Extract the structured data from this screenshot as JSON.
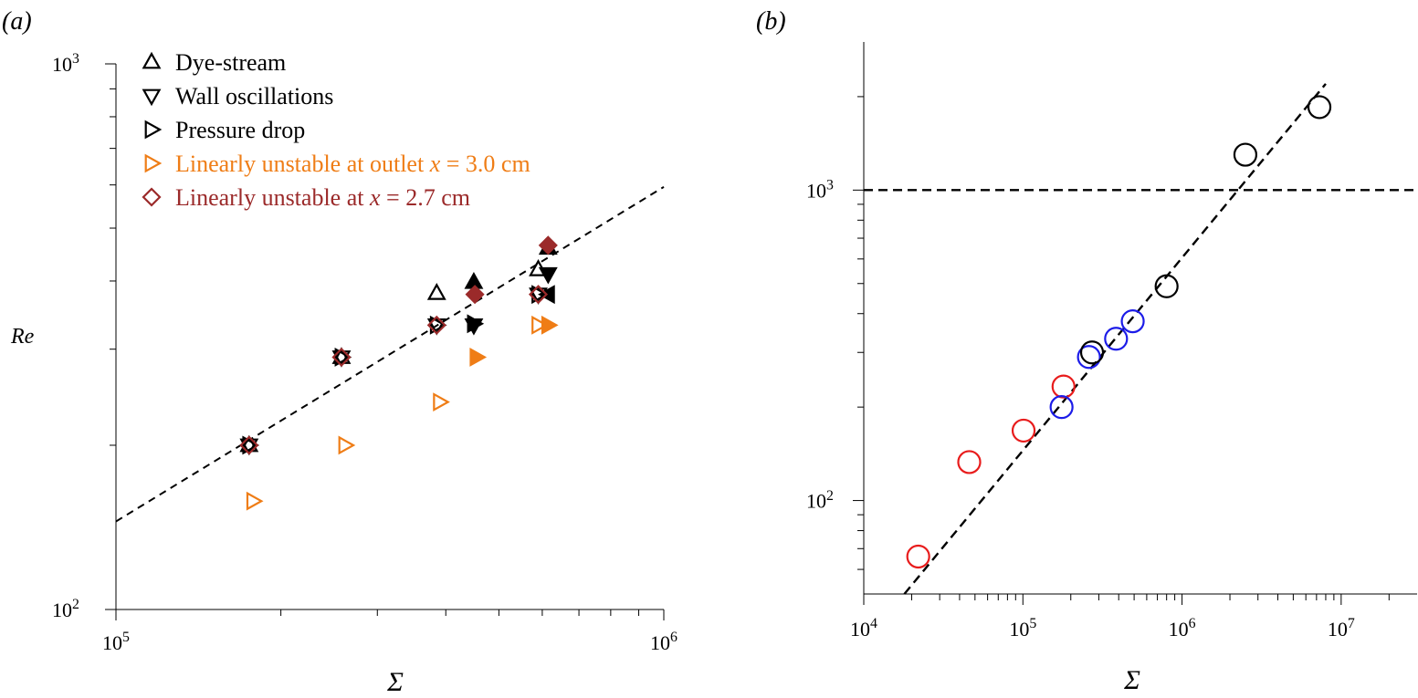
{
  "panels": {
    "a": {
      "label": "(a)"
    },
    "b": {
      "label": "(b)"
    }
  },
  "legend": [
    {
      "marker": "triangle-up-open",
      "label": "Dye-stream",
      "color": "#000000"
    },
    {
      "marker": "triangle-down-open",
      "label": "Wall oscillations",
      "color": "#000000"
    },
    {
      "marker": "triangle-right-open",
      "label": "Pressure drop",
      "color": "#000000"
    },
    {
      "marker": "triangle-right-open",
      "label_pre": "Linearly unstable at outlet ",
      "label_var": "x",
      "label_post": " = 3.0 cm",
      "color": "#ef7d16"
    },
    {
      "marker": "diamond-open",
      "label_pre": "Linearly unstable at ",
      "label_var": "x",
      "label_post": " = 2.7 cm",
      "color": "#9b2a2a"
    }
  ],
  "colors": {
    "black": "#000000",
    "orange": "#ef7d16",
    "darkred": "#9b2a2a",
    "red": "#e81c1c",
    "blue": "#1c1ce8"
  },
  "chart_data": [
    {
      "type": "scatter",
      "panel": "(a)",
      "xlabel": "Σ",
      "ylabel": "Re",
      "xscale": "log",
      "yscale": "log",
      "xlim": [
        100000,
        1000000
      ],
      "ylim": [
        100,
        1000
      ],
      "xticks": [
        {
          "value": 100000,
          "base": "10",
          "exp": "5"
        },
        {
          "value": 1000000,
          "base": "10",
          "exp": "6"
        }
      ],
      "yticks": [
        {
          "value": 100,
          "base": "10",
          "exp": "2"
        },
        {
          "value": 1000,
          "base": "10",
          "exp": "3"
        }
      ],
      "fit_line": {
        "style": "dashed",
        "points": [
          [
            100000,
            145
          ],
          [
            1000000,
            595
          ]
        ]
      },
      "series": [
        {
          "marker": "triangle-up",
          "color": "#000000",
          "open": [
            [
              175000,
              200
            ],
            [
              258000,
              290
            ],
            [
              385000,
              380
            ],
            [
              590000,
              420
            ]
          ],
          "filled": [
            [
              450000,
              398
            ],
            [
              615000,
              460
            ]
          ]
        },
        {
          "marker": "triangle-down",
          "color": "#000000",
          "open": [
            [
              175000,
              200
            ],
            [
              258000,
              290
            ],
            [
              385000,
              332
            ],
            [
              590000,
              378
            ]
          ],
          "filled": [
            [
              450000,
              332
            ],
            [
              615000,
              412
            ]
          ]
        },
        {
          "marker": "triangle-right",
          "color": "#000000",
          "open": [
            [
              175000,
              200
            ],
            [
              258000,
              290
            ],
            [
              385000,
              332
            ],
            [
              590000,
              378
            ]
          ],
          "filled": [
            [
              450000,
              334
            ]
          ]
        },
        {
          "marker": "triangle-left",
          "color": "#000000",
          "filled": [
            [
              615000,
              378
            ]
          ]
        },
        {
          "marker": "triangle-right",
          "color": "#ef7d16",
          "open": [
            [
              178000,
              158
            ],
            [
              262000,
              200
            ],
            [
              390000,
              240
            ],
            [
              590000,
              332
            ]
          ],
          "filled": [
            [
              455000,
              290
            ],
            [
              615000,
              332
            ]
          ]
        },
        {
          "marker": "diamond",
          "color": "#9b2a2a",
          "open": [
            [
              175000,
              200
            ],
            [
              258000,
              290
            ],
            [
              385000,
              332
            ],
            [
              590000,
              378
            ]
          ],
          "filled": [
            [
              452000,
              378
            ],
            [
              615000,
              465
            ]
          ]
        }
      ]
    },
    {
      "type": "scatter",
      "panel": "(b)",
      "xlabel": "Σ",
      "ylabel": "",
      "xscale": "log",
      "yscale": "log",
      "xlim": [
        10000,
        30000000
      ],
      "ylim": [
        50,
        3000
      ],
      "xticks": [
        {
          "value": 10000,
          "base": "10",
          "exp": "4"
        },
        {
          "value": 100000,
          "base": "10",
          "exp": "5"
        },
        {
          "value": 1000000,
          "base": "10",
          "exp": "6"
        },
        {
          "value": 10000000,
          "base": "10",
          "exp": "7"
        }
      ],
      "yticks": [
        {
          "value": 100,
          "base": "10",
          "exp": "2"
        },
        {
          "value": 1000,
          "base": "10",
          "exp": "3"
        }
      ],
      "hline": {
        "y": 1000,
        "style": "dashed"
      },
      "fit_line": {
        "style": "dashed",
        "points": [
          [
            18000,
            50
          ],
          [
            8000000,
            2200
          ]
        ]
      },
      "series": [
        {
          "color": "#e81c1c",
          "marker": "circle-open",
          "points": [
            [
              22000,
              66
            ],
            [
              46000,
              133
            ],
            [
              101000,
              168
            ],
            [
              180000,
              233
            ]
          ]
        },
        {
          "color": "#1c1ce8",
          "marker": "circle-open",
          "points": [
            [
              175000,
              200
            ],
            [
              260000,
              290
            ],
            [
              385000,
              332
            ],
            [
              490000,
              378
            ]
          ]
        },
        {
          "color": "#000000",
          "marker": "circle-open",
          "points": [
            [
              272000,
              300
            ],
            [
              800000,
              490
            ],
            [
              2500000,
              1300
            ],
            [
              7300000,
              1850
            ]
          ]
        }
      ]
    }
  ]
}
